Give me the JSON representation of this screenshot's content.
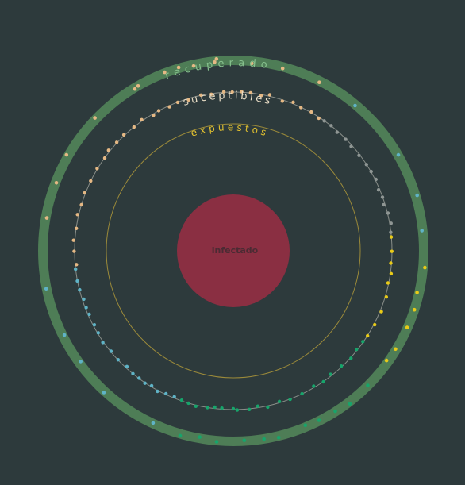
{
  "labels": {
    "recovered": "recuperado",
    "susceptible": "suceptibles",
    "exposed": "expuestos",
    "infected": "infectado"
  },
  "colors": {
    "background": "#2d3a3c",
    "recovered_ring": "#4e7d56",
    "recovered_text": "#86c08d",
    "susceptible_text": "#e9ddc6",
    "exposed_text": "#e3c22f",
    "exposed_ring": "#9b8a3a",
    "infected_fill": "#8a2f42",
    "infected_text": "#4a2b33",
    "dot_orange": "#e5b884",
    "dot_gray": "#8f9694",
    "dot_yellow": "#e9cb18",
    "dot_teal": "#5fb3c6",
    "dot_green": "#17a46b"
  }
}
